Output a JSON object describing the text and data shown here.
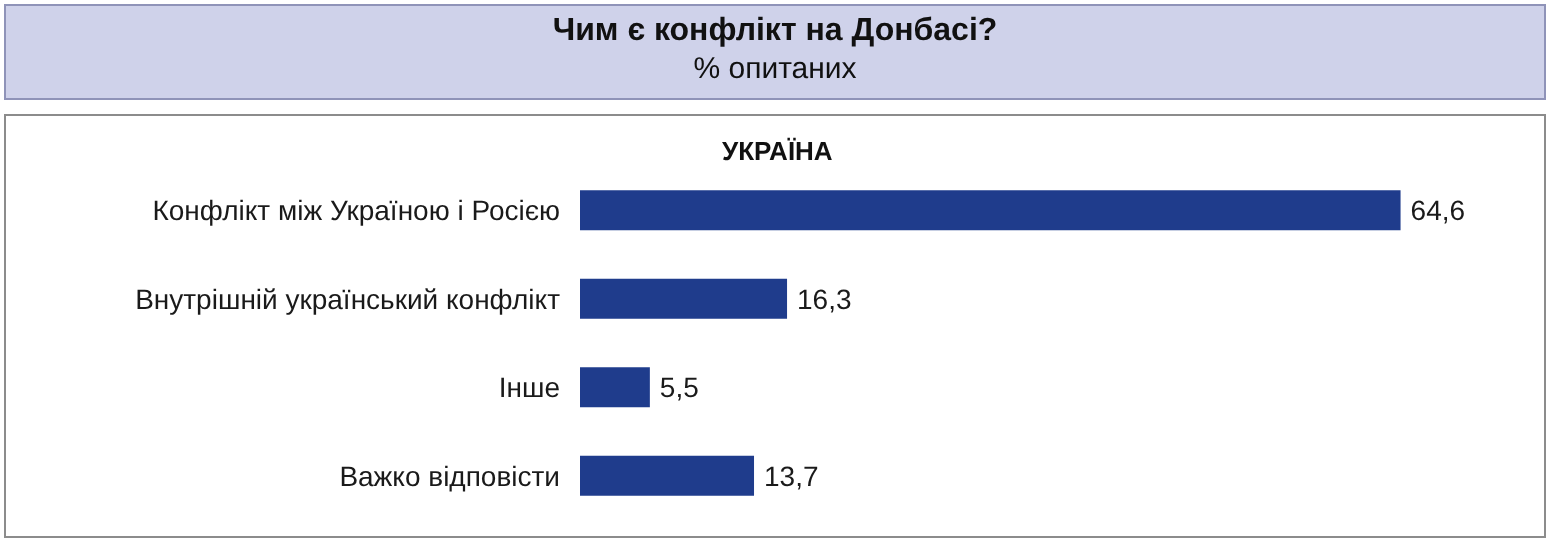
{
  "chart_data": {
    "type": "bar",
    "orientation": "horizontal",
    "title": "Чим є конфлікт на Донбасі?",
    "subtitle": "% опитаних",
    "annotations": [
      "УКРАЇНА"
    ],
    "categories": [
      "Конфлікт між Україною і Росією",
      "Внутрішній український конфлікт",
      "Інше",
      "Важко відповісти"
    ],
    "values": [
      64.6,
      16.3,
      5.5,
      13.7
    ],
    "value_labels": [
      "64,6",
      "16,3",
      "5,5",
      "13,7"
    ],
    "color": "#1f3c8c"
  }
}
